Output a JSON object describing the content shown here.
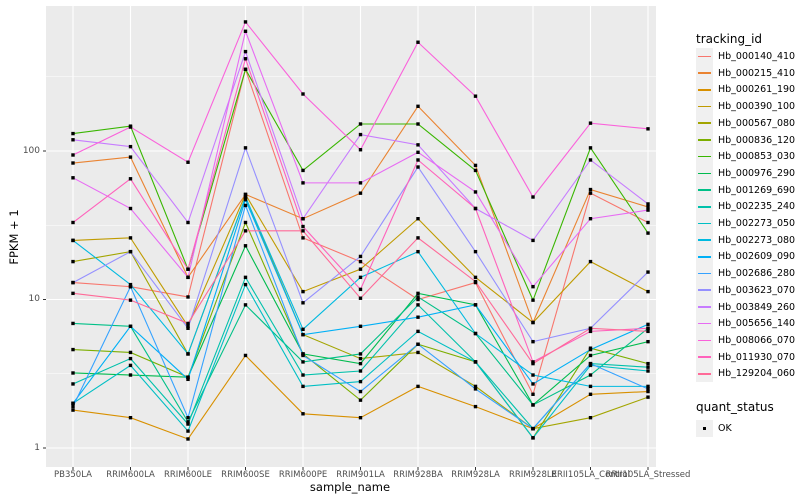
{
  "figure": {
    "y_axis_title": "FPKM + 1",
    "x_axis_title": "sample_name",
    "series_legend_title": "tracking_id",
    "quant_legend_title": "quant_status",
    "quant_ok_label": "OK"
  },
  "colors": {
    "panel_background": "#EBEBEB",
    "gridline": "#FFFFFF",
    "tick_text": "#4D4D4D",
    "axis_title_text": "#000000",
    "point": "#000000",
    "legend_key_background": "#F0F0F0"
  },
  "chart_data": {
    "type": "line",
    "title": "",
    "xlabel": "sample_name",
    "ylabel": "FPKM + 1",
    "y_scale": "log10",
    "y_ticks": [
      1,
      10,
      100
    ],
    "y_minor_gridlines": [
      3.162,
      31.62,
      316.2
    ],
    "ylim": [
      0.93,
      950
    ],
    "grid": "white major and minor gridlines on grey panel",
    "legend_position": "right",
    "point_marker": "small black square (quant_status OK)",
    "categories": [
      "PB350LA",
      "RRIM600LA",
      "RRIM600LE",
      "RRIM600SE",
      "RRIM600PE",
      "RRIM901LA",
      "RRIM928BA",
      "RRIM928LA",
      "RRIM928LE",
      "RRII105LA_Control",
      "RRII105LA_Stressed"
    ],
    "series": [
      {
        "name": "Hb_000140_410",
        "color": "#F8766D",
        "values": [
          13,
          12.2,
          10.4,
          355,
          26,
          18,
          10,
          13,
          2.3,
          52,
          33
        ]
      },
      {
        "name": "Hb_000215_410",
        "color": "#EA8331",
        "values": [
          83,
          91,
          14.1,
          51,
          35,
          52,
          200,
          80,
          7.0,
          55,
          42
        ]
      },
      {
        "name": "Hb_000261_190",
        "color": "#D89000",
        "values": [
          1.8,
          1.6,
          1.15,
          4.2,
          1.7,
          1.6,
          2.6,
          1.9,
          1.35,
          2.3,
          2.4
        ]
      },
      {
        "name": "Hb_000390_100",
        "color": "#C09B00",
        "values": [
          25,
          26,
          6.6,
          51,
          11.3,
          16,
          35,
          14.1,
          7.0,
          18,
          11.3
        ]
      },
      {
        "name": "Hb_000567_080",
        "color": "#A3A500",
        "values": [
          18,
          21,
          4.3,
          49,
          5.8,
          4.0,
          4.4,
          2.6,
          1.35,
          1.6,
          2.2
        ]
      },
      {
        "name": "Hb_000836_120",
        "color": "#7CAE00",
        "values": [
          4.6,
          4.4,
          3.0,
          33,
          4.3,
          2.1,
          5.0,
          3.8,
          1.17,
          4.7,
          3.7
        ]
      },
      {
        "name": "Hb_000853_030",
        "color": "#39B600",
        "values": [
          131,
          147,
          16,
          355,
          74,
          152,
          152,
          74,
          9.9,
          105,
          28
        ]
      },
      {
        "name": "Hb_000976_290",
        "color": "#00BB4E",
        "values": [
          3.2,
          3.1,
          3.0,
          23,
          4.3,
          3.7,
          11,
          9.2,
          1.95,
          4.2,
          5.2
        ]
      },
      {
        "name": "Hb_001269_690",
        "color": "#00C087",
        "values": [
          6.9,
          6.6,
          1.5,
          9.2,
          3.8,
          4.3,
          10.4,
          5.9,
          1.95,
          3.1,
          6.4
        ]
      },
      {
        "name": "Hb_002235_240",
        "color": "#00C1AB",
        "values": [
          2.7,
          4.0,
          1.45,
          14.1,
          3.1,
          3.3,
          9.2,
          3.8,
          1.35,
          3.7,
          3.5
        ]
      },
      {
        "name": "Hb_002273_050",
        "color": "#00BFC4",
        "values": [
          2.0,
          3.6,
          1.3,
          12.6,
          2.6,
          2.8,
          6.1,
          3.8,
          1.17,
          3.6,
          3.3
        ]
      },
      {
        "name": "Hb_002273_080",
        "color": "#00BAE0",
        "values": [
          25,
          12.6,
          4.3,
          49,
          6.3,
          14.1,
          21,
          5.9,
          3.1,
          2.6,
          2.6
        ]
      },
      {
        "name": "Hb_002609_090",
        "color": "#00B0F6",
        "values": [
          2.0,
          6.6,
          2.9,
          47,
          5.8,
          6.6,
          7.6,
          9.2,
          2.7,
          4.6,
          6.8
        ]
      },
      {
        "name": "Hb_002686_280",
        "color": "#35A2FF",
        "values": [
          1.9,
          12.2,
          1.6,
          43,
          4.2,
          2.4,
          5.0,
          2.5,
          1.35,
          3.7,
          2.5
        ]
      },
      {
        "name": "Hb_003623_070",
        "color": "#9590FF",
        "values": [
          13,
          21,
          6.4,
          105,
          9.5,
          19.5,
          78,
          21,
          5.2,
          6.4,
          15.3
        ]
      },
      {
        "name": "Hb_003849_260",
        "color": "#C77CFF",
        "values": [
          119,
          107,
          33,
          467,
          35,
          129,
          110,
          41,
          25,
          87,
          44
        ]
      },
      {
        "name": "Hb_005656_140",
        "color": "#E76BF3",
        "values": [
          66,
          41,
          14.1,
          640,
          61,
          61,
          98,
          53,
          12.2,
          35,
          40
        ]
      },
      {
        "name": "Hb_008066_070",
        "color": "#FA62DB",
        "values": [
          94,
          145,
          84,
          740,
          242,
          102,
          540,
          234,
          49,
          154,
          141
        ]
      },
      {
        "name": "Hb_011930_070",
        "color": "#FF62BC",
        "values": [
          33,
          65,
          16,
          418,
          31,
          11.7,
          87,
          41,
          3.8,
          6.1,
          6.4
        ]
      },
      {
        "name": "Hb_129204_060",
        "color": "#FF6A98",
        "values": [
          11,
          9.9,
          6.9,
          29,
          29,
          10.2,
          26,
          13.2,
          3.7,
          6.4,
          6.1
        ]
      }
    ],
    "quant_status": {
      "label": "OK",
      "marker": "black-square"
    }
  }
}
